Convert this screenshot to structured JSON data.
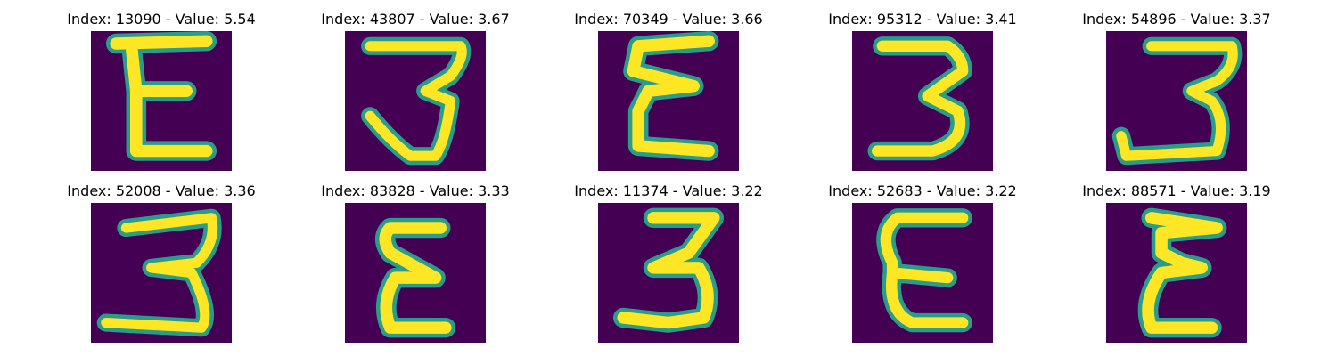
{
  "colors": {
    "background": "#440154",
    "stroke_outer": "#2a9c8a",
    "stroke_inner": "#fde725",
    "title": "#000000"
  },
  "panels": [
    {
      "title": "Index: 13090 - Value: 5.54",
      "digit_icon": "digit-3-mirrored-icon"
    },
    {
      "title": "Index: 43807 - Value: 3.67",
      "digit_icon": "digit-3-icon"
    },
    {
      "title": "Index: 70349 - Value: 3.66",
      "digit_icon": "digit-3-mirrored-icon"
    },
    {
      "title": "Index: 95312 - Value: 3.41",
      "digit_icon": "digit-3-icon"
    },
    {
      "title": "Index: 54896 - Value: 3.37",
      "digit_icon": "digit-3-icon"
    },
    {
      "title": "Index: 52008 - Value: 3.36",
      "digit_icon": "digit-3-icon"
    },
    {
      "title": "Index: 83828 - Value: 3.33",
      "digit_icon": "digit-3-mirrored-icon"
    },
    {
      "title": "Index: 11374 - Value: 3.22",
      "digit_icon": "digit-3-icon"
    },
    {
      "title": "Index: 52683 - Value: 3.22",
      "digit_icon": "digit-3-mirrored-icon"
    },
    {
      "title": "Index: 88571 - Value: 3.19",
      "digit_icon": "digit-3-mirrored-icon"
    }
  ]
}
